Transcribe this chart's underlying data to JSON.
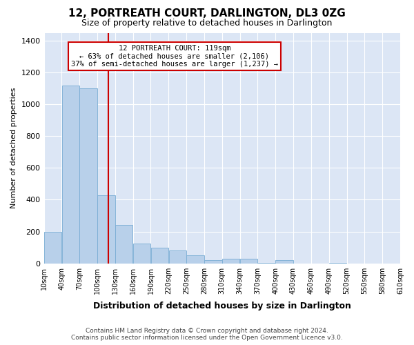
{
  "title": "12, PORTREATH COURT, DARLINGTON, DL3 0ZG",
  "subtitle": "Size of property relative to detached houses in Darlington",
  "xlabel": "Distribution of detached houses by size in Darlington",
  "ylabel": "Number of detached properties",
  "footer_line1": "Contains HM Land Registry data © Crown copyright and database right 2024.",
  "footer_line2": "Contains public sector information licensed under the Open Government Licence v3.0.",
  "property_size": 119,
  "annotation_line1": "12 PORTREATH COURT: 119sqm",
  "annotation_line2": "← 63% of detached houses are smaller (2,106)",
  "annotation_line3": "37% of semi-detached houses are larger (1,237) →",
  "bar_color": "#b8d0ea",
  "bar_edge_color": "#7aadd4",
  "vline_color": "#cc0000",
  "bg_color": "#dce6f5",
  "bin_edges": [
    10,
    40,
    70,
    100,
    130,
    160,
    190,
    220,
    250,
    280,
    310,
    340,
    370,
    400,
    430,
    460,
    490,
    520,
    550,
    580,
    610
  ],
  "values": [
    200,
    1120,
    1100,
    430,
    240,
    125,
    100,
    80,
    50,
    20,
    28,
    28,
    5,
    20,
    0,
    0,
    5,
    0,
    0,
    0
  ],
  "ylim_max": 1450,
  "yticks": [
    0,
    200,
    400,
    600,
    800,
    1000,
    1200,
    1400
  ]
}
